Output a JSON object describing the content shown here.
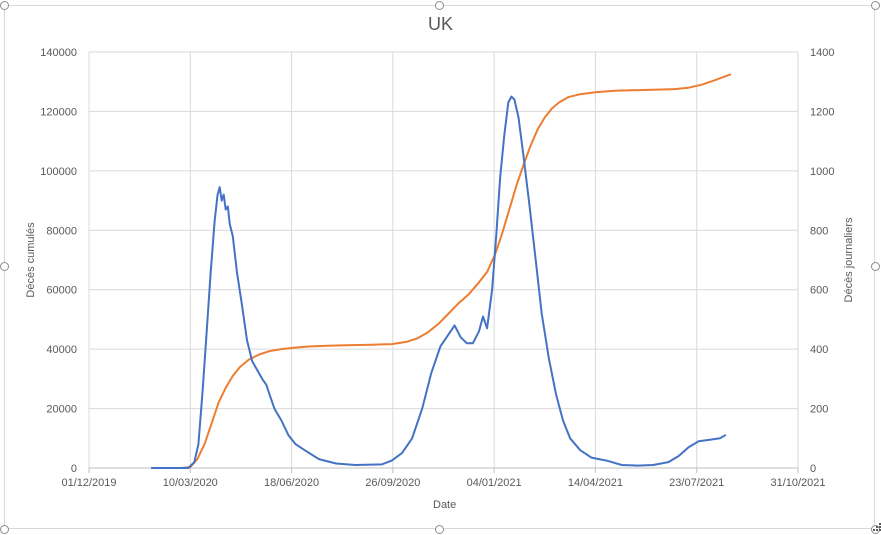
{
  "chart_data": {
    "type": "line",
    "title": "UK",
    "xlabel": "Date",
    "ylabel_left": "Décès cumulés",
    "ylabel_right": "Décès journaliers",
    "x_tick_labels": [
      "01/12/2019",
      "10/03/2020",
      "18/06/2020",
      "26/09/2020",
      "04/01/2021",
      "14/04/2021",
      "23/07/2021",
      "31/10/2021"
    ],
    "xlim": [
      "01/12/2019",
      "31/10/2021"
    ],
    "y_left_ticks": [
      "0",
      "20000",
      "40000",
      "60000",
      "80000",
      "100000",
      "120000",
      "140000"
    ],
    "y_right_ticks": [
      "0",
      "200",
      "400",
      "600",
      "800",
      "1000",
      "1200",
      "1400"
    ],
    "ylim_left": [
      0,
      140000
    ],
    "ylim_right": [
      0,
      1400
    ],
    "grid": true,
    "legend": "none",
    "series": [
      {
        "axis": "left",
        "color": "#ED7D31",
        "points": [
          [
            "2020-03-01",
            0
          ],
          [
            "2020-03-10",
            300
          ],
          [
            "2020-03-17",
            3000
          ],
          [
            "2020-03-24",
            8000
          ],
          [
            "2020-03-31",
            15000
          ],
          [
            "2020-04-07",
            22000
          ],
          [
            "2020-04-14",
            27000
          ],
          [
            "2020-04-21",
            31000
          ],
          [
            "2020-04-28",
            34000
          ],
          [
            "2020-05-07",
            36500
          ],
          [
            "2020-05-17",
            38200
          ],
          [
            "2020-05-27",
            39300
          ],
          [
            "2020-06-08",
            40000
          ],
          [
            "2020-06-20",
            40500
          ],
          [
            "2020-07-05",
            40900
          ],
          [
            "2020-07-20",
            41100
          ],
          [
            "2020-08-10",
            41300
          ],
          [
            "2020-09-05",
            41500
          ],
          [
            "2020-09-25",
            41700
          ],
          [
            "2020-10-10",
            42500
          ],
          [
            "2020-10-20",
            43600
          ],
          [
            "2020-10-30",
            45500
          ],
          [
            "2020-11-10",
            48500
          ],
          [
            "2020-11-20",
            52000
          ],
          [
            "2020-11-30",
            55500
          ],
          [
            "2020-12-10",
            58500
          ],
          [
            "2020-12-20",
            62500
          ],
          [
            "2020-12-28",
            66000
          ],
          [
            "2021-01-05",
            72000
          ],
          [
            "2021-01-12",
            79000
          ],
          [
            "2021-01-19",
            87000
          ],
          [
            "2021-01-26",
            95000
          ],
          [
            "2021-02-02",
            102000
          ],
          [
            "2021-02-09",
            108500
          ],
          [
            "2021-02-16",
            114000
          ],
          [
            "2021-02-23",
            118000
          ],
          [
            "2021-03-02",
            121000
          ],
          [
            "2021-03-09",
            123000
          ],
          [
            "2021-03-18",
            124800
          ],
          [
            "2021-03-30",
            125800
          ],
          [
            "2021-04-15",
            126500
          ],
          [
            "2021-05-05",
            127000
          ],
          [
            "2021-06-01",
            127200
          ],
          [
            "2021-07-01",
            127500
          ],
          [
            "2021-07-15",
            128000
          ],
          [
            "2021-07-28",
            129000
          ],
          [
            "2021-08-10",
            130500
          ],
          [
            "2021-08-25",
            132400
          ]
        ]
      },
      {
        "axis": "right",
        "color": "#4472C4",
        "points": [
          [
            "2020-02-01",
            0
          ],
          [
            "2020-03-08",
            0
          ],
          [
            "2020-03-14",
            20
          ],
          [
            "2020-03-18",
            80
          ],
          [
            "2020-03-22",
            250
          ],
          [
            "2020-03-26",
            450
          ],
          [
            "2020-03-30",
            650
          ],
          [
            "2020-04-03",
            830
          ],
          [
            "2020-04-06",
            920
          ],
          [
            "2020-04-08",
            945
          ],
          [
            "2020-04-10",
            900
          ],
          [
            "2020-04-12",
            920
          ],
          [
            "2020-04-14",
            870
          ],
          [
            "2020-04-16",
            880
          ],
          [
            "2020-04-18",
            820
          ],
          [
            "2020-04-21",
            780
          ],
          [
            "2020-04-25",
            660
          ],
          [
            "2020-04-30",
            550
          ],
          [
            "2020-05-05",
            430
          ],
          [
            "2020-05-10",
            360
          ],
          [
            "2020-05-15",
            330
          ],
          [
            "2020-05-20",
            300
          ],
          [
            "2020-05-24",
            280
          ],
          [
            "2020-05-28",
            240
          ],
          [
            "2020-06-01",
            200
          ],
          [
            "2020-06-08",
            160
          ],
          [
            "2020-06-15",
            110
          ],
          [
            "2020-06-22",
            80
          ],
          [
            "2020-07-01",
            60
          ],
          [
            "2020-07-15",
            30
          ],
          [
            "2020-08-01",
            15
          ],
          [
            "2020-08-20",
            10
          ],
          [
            "2020-09-15",
            12
          ],
          [
            "2020-09-25",
            25
          ],
          [
            "2020-10-05",
            50
          ],
          [
            "2020-10-15",
            100
          ],
          [
            "2020-10-25",
            200
          ],
          [
            "2020-11-03",
            320
          ],
          [
            "2020-11-12",
            410
          ],
          [
            "2020-11-20",
            450
          ],
          [
            "2020-11-26",
            480
          ],
          [
            "2020-12-02",
            440
          ],
          [
            "2020-12-08",
            420
          ],
          [
            "2020-12-14",
            420
          ],
          [
            "2020-12-20",
            460
          ],
          [
            "2020-12-24",
            510
          ],
          [
            "2020-12-28",
            470
          ],
          [
            "2021-01-02",
            600
          ],
          [
            "2021-01-06",
            780
          ],
          [
            "2021-01-10",
            980
          ],
          [
            "2021-01-14",
            1120
          ],
          [
            "2021-01-18",
            1230
          ],
          [
            "2021-01-21",
            1250
          ],
          [
            "2021-01-24",
            1240
          ],
          [
            "2021-01-28",
            1180
          ],
          [
            "2021-02-02",
            1050
          ],
          [
            "2021-02-08",
            880
          ],
          [
            "2021-02-14",
            700
          ],
          [
            "2021-02-20",
            520
          ],
          [
            "2021-02-27",
            370
          ],
          [
            "2021-03-06",
            250
          ],
          [
            "2021-03-13",
            160
          ],
          [
            "2021-03-20",
            100
          ],
          [
            "2021-03-30",
            60
          ],
          [
            "2021-04-10",
            35
          ],
          [
            "2021-04-25",
            25
          ],
          [
            "2021-05-10",
            10
          ],
          [
            "2021-05-25",
            8
          ],
          [
            "2021-06-10",
            10
          ],
          [
            "2021-06-25",
            20
          ],
          [
            "2021-07-05",
            40
          ],
          [
            "2021-07-15",
            70
          ],
          [
            "2021-07-25",
            90
          ],
          [
            "2021-08-05",
            95
          ],
          [
            "2021-08-15",
            100
          ],
          [
            "2021-08-20",
            110
          ]
        ]
      }
    ]
  }
}
